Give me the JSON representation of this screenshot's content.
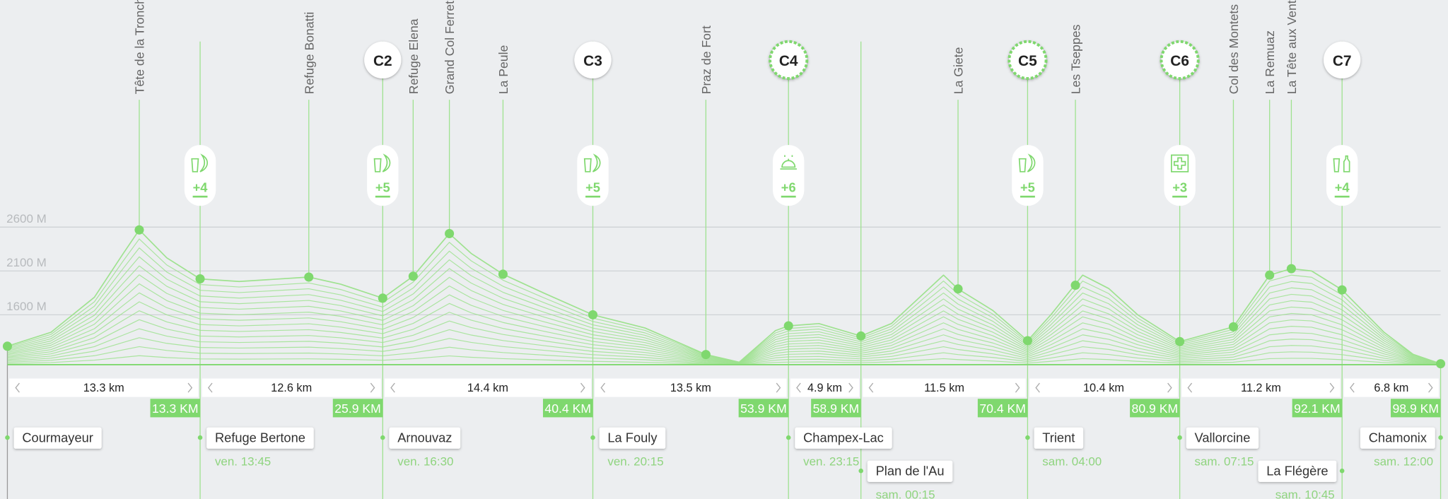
{
  "elevation_axis": {
    "ticks": [
      {
        "value": 2600,
        "label": "2600 M"
      },
      {
        "value": 2100,
        "label": "2100 M"
      },
      {
        "value": 1600,
        "label": "1600 M"
      }
    ]
  },
  "profile": {
    "km": [
      0,
      3,
      6,
      8,
      9.1,
      11,
      13.3,
      16,
      20.8,
      23,
      25.9,
      28.0,
      30.5,
      32,
      34.2,
      37,
      40.4,
      44,
      48.2,
      50.5,
      53,
      53.9,
      56,
      58.9,
      61,
      64.6,
      65.6,
      68,
      70.4,
      72,
      74.2,
      76,
      78,
      80.9,
      84.6,
      87.1,
      88.6,
      90,
      92.1,
      95,
      97,
      98.9
    ],
    "elevation": [
      1242,
      1400,
      1800,
      2300,
      2568,
      2250,
      2010,
      1980,
      2030,
      1950,
      1790,
      2040,
      2526,
      2300,
      2063,
      1850,
      1600,
      1450,
      1147,
      1060,
      1420,
      1474,
      1500,
      1358,
      1500,
      2053,
      1895,
      1650,
      1305,
      1600,
      2053,
      1900,
      1600,
      1295,
      1463,
      2053,
      2126,
      2100,
      1884,
      1400,
      1150,
      1042
    ]
  },
  "peaks": [
    {
      "name": "Tête de la Tronche",
      "km": 9.1,
      "elevation": 2568
    },
    {
      "name": "Refuge Bonatti",
      "km": 20.8,
      "elevation": 2030
    },
    {
      "name": "Refuge Elena",
      "km": 28.0,
      "elevation": 2040
    },
    {
      "name": "Grand Col Ferret",
      "km": 30.5,
      "elevation": 2526
    },
    {
      "name": "La Peule",
      "km": 34.2,
      "elevation": 2063
    },
    {
      "name": "Praz de Fort",
      "km": 48.2,
      "elevation": 1147
    },
    {
      "name": "La Giete",
      "km": 65.6,
      "elevation": 1895
    },
    {
      "name": "Les Tseppes",
      "km": 73.7,
      "elevation": 1937
    },
    {
      "name": "Col des Montets",
      "km": 84.6,
      "elevation": 1463
    },
    {
      "name": "La Remuaz",
      "km": 87.1,
      "elevation": 2053
    },
    {
      "name": "La Tête aux Vents",
      "km": 88.6,
      "elevation": 2126
    }
  ],
  "stations": [
    {
      "name": "Courmayeur",
      "km": 0,
      "elevation": 1242
    },
    {
      "name": "Refuge Bertone",
      "km": 13.3,
      "km_label": "13.3 KM",
      "elevation": 2010,
      "time": "ven. 13:45",
      "services": "+4"
    },
    {
      "name": "Arnouvaz",
      "km": 25.9,
      "km_label": "25.9 KM",
      "elevation": 1790,
      "time": "ven. 16:30",
      "checkpoint": "C2",
      "services": "+5"
    },
    {
      "name": "La Fouly",
      "km": 40.4,
      "km_label": "40.4 KM",
      "elevation": 1600,
      "time": "ven. 20:15",
      "checkpoint": "C3",
      "services": "+5"
    },
    {
      "name": "Champex-Lac",
      "km": 53.9,
      "km_label": "53.9 KM",
      "elevation": 1474,
      "time": "ven. 23:15",
      "checkpoint": "C4",
      "checkpoint_style": "dashed",
      "services": "+6"
    },
    {
      "name": "Plan de l'Au",
      "km": 58.9,
      "km_label": "58.9 KM",
      "elevation": 1358,
      "time": "sam. 00:15"
    },
    {
      "name": "Trient",
      "km": 70.4,
      "km_label": "70.4 KM",
      "elevation": 1305,
      "time": "sam. 04:00",
      "checkpoint": "C5",
      "checkpoint_style": "dashed",
      "services": "+5"
    },
    {
      "name": "Vallorcine",
      "km": 80.9,
      "km_label": "80.9 KM",
      "elevation": 1295,
      "time": "sam. 07:15",
      "checkpoint": "C6",
      "checkpoint_style": "dashed",
      "services": "+3"
    },
    {
      "name": "La Flégère",
      "km": 92.1,
      "km_label": "92.1 KM",
      "elevation": 1884,
      "time": "sam. 10:45",
      "checkpoint": "C7",
      "services": "+4"
    },
    {
      "name": "Chamonix",
      "km": 98.9,
      "km_label": "98.9 KM",
      "elevation": 1042,
      "time": "sam. 12:00"
    }
  ],
  "segments": [
    "13.3 km",
    "12.6 km",
    "14.4 km",
    "13.5 km",
    "4.9 km",
    "11.5 km",
    "10.4 km",
    "11.2 km",
    "6.8 km"
  ]
}
